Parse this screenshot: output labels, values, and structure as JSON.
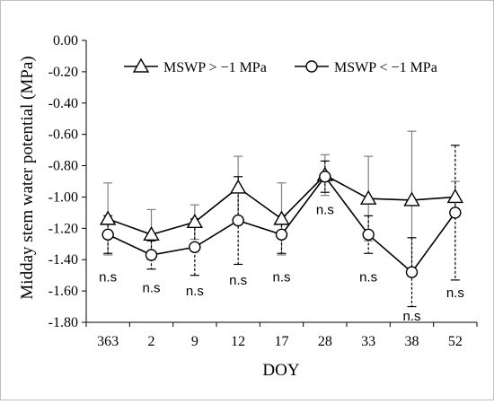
{
  "chart_data": {
    "type": "line",
    "xlabel": "DOY",
    "ylabel": "Midday stem water potential (MPa)",
    "ylim": [
      -1.8,
      0
    ],
    "yticks": [
      0.0,
      -0.2,
      -0.4,
      -0.6,
      -0.8,
      -1.0,
      -1.2,
      -1.4,
      -1.6,
      -1.8
    ],
    "ytick_labels": [
      "0.00",
      "-0.20",
      "-0.40",
      "-0.60",
      "-0.80",
      "-1.00",
      "-1.20",
      "-1.40",
      "-1.60",
      "-1.80"
    ],
    "categories": [
      "363",
      "2",
      "9",
      "12",
      "17",
      "28",
      "33",
      "38",
      "52"
    ],
    "series": [
      {
        "name": "MSWP > −1 MPa",
        "marker": "triangle",
        "errorbar_style": "solid",
        "errorbar_color": "#808080",
        "values": [
          -1.14,
          -1.24,
          -1.16,
          -0.94,
          -1.14,
          -0.86,
          -1.01,
          -1.02,
          -1.0
        ],
        "error": [
          0.23,
          0.16,
          0.11,
          0.2,
          0.23,
          0.13,
          0.27,
          0.44,
          0.1
        ]
      },
      {
        "name": "MSWP < −1 MPa",
        "marker": "circle",
        "errorbar_style": "dashed",
        "errorbar_color": "#000000",
        "values": [
          -1.24,
          -1.37,
          -1.32,
          -1.15,
          -1.24,
          -0.87,
          -1.24,
          -1.48,
          -1.1
        ],
        "error": [
          0.12,
          0.09,
          0.18,
          0.28,
          0.12,
          0.1,
          0.12,
          0.22,
          0.43
        ]
      }
    ],
    "annotations": [
      {
        "text": "n.s",
        "category": "363",
        "y": -1.51
      },
      {
        "text": "n.s",
        "category": "2",
        "y": -1.58
      },
      {
        "text": "n.s",
        "category": "9",
        "y": -1.6
      },
      {
        "text": "n.s",
        "category": "12",
        "y": -1.53
      },
      {
        "text": "n.s",
        "category": "17",
        "y": -1.51
      },
      {
        "text": "n.s",
        "category": "28",
        "y": -1.08
      },
      {
        "text": "n.s",
        "category": "33",
        "y": -1.51
      },
      {
        "text": "n.s",
        "category": "38",
        "y": -1.76
      },
      {
        "text": "n.s",
        "category": "52",
        "y": -1.61
      }
    ],
    "legend_position": "top-center",
    "grid": false
  }
}
